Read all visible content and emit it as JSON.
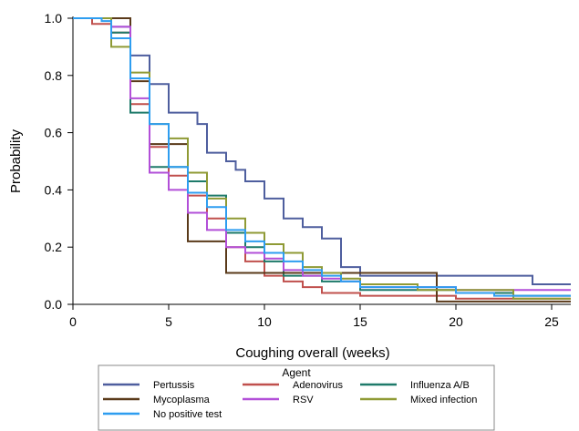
{
  "chart_data": {
    "type": "line",
    "step": true,
    "xlabel": "Coughing overall (weeks)",
    "ylabel": "Probability",
    "xlim": [
      0,
      26
    ],
    "ylim": [
      0,
      1.0
    ],
    "x_ticks": [
      0,
      5,
      10,
      15,
      20,
      25
    ],
    "y_ticks": [
      0.0,
      0.2,
      0.4,
      0.6,
      0.8,
      1.0
    ],
    "x_tick_labels": [
      "0",
      "5",
      "10",
      "15",
      "20",
      "25"
    ],
    "y_tick_labels": [
      "0.0",
      "0.2",
      "0.4",
      "0.6",
      "0.8",
      "1.0"
    ],
    "grid": false,
    "legend": {
      "title": "Agent",
      "placement": "bottom"
    },
    "series": [
      {
        "name": "Pertussis",
        "color": "#4e5e9e",
        "points": [
          [
            0,
            1.0
          ],
          [
            2,
            0.97
          ],
          [
            3,
            0.87
          ],
          [
            4,
            0.77
          ],
          [
            5,
            0.67
          ],
          [
            6,
            0.67
          ],
          [
            6.5,
            0.63
          ],
          [
            7,
            0.53
          ],
          [
            8,
            0.5
          ],
          [
            8.5,
            0.47
          ],
          [
            9,
            0.43
          ],
          [
            10,
            0.37
          ],
          [
            11,
            0.3
          ],
          [
            12,
            0.27
          ],
          [
            13,
            0.23
          ],
          [
            14,
            0.13
          ],
          [
            15,
            0.1
          ],
          [
            19,
            0.1
          ],
          [
            24,
            0.07
          ],
          [
            26,
            0.07
          ]
        ]
      },
      {
        "name": "Adenovirus",
        "color": "#c0504d",
        "points": [
          [
            0,
            1.0
          ],
          [
            1,
            0.98
          ],
          [
            2,
            0.95
          ],
          [
            3,
            0.7
          ],
          [
            4,
            0.55
          ],
          [
            5,
            0.45
          ],
          [
            6,
            0.38
          ],
          [
            7,
            0.3
          ],
          [
            8,
            0.2
          ],
          [
            9,
            0.15
          ],
          [
            10,
            0.1
          ],
          [
            11,
            0.08
          ],
          [
            12,
            0.06
          ],
          [
            13,
            0.04
          ],
          [
            15,
            0.03
          ],
          [
            20,
            0.02
          ],
          [
            26,
            0.02
          ]
        ]
      },
      {
        "name": "Influenza A/B",
        "color": "#1e7a6a",
        "points": [
          [
            0,
            1.0
          ],
          [
            2,
            0.95
          ],
          [
            3,
            0.67
          ],
          [
            4,
            0.48
          ],
          [
            5,
            0.48
          ],
          [
            6,
            0.43
          ],
          [
            7,
            0.38
          ],
          [
            8,
            0.25
          ],
          [
            9,
            0.2
          ],
          [
            10,
            0.15
          ],
          [
            11,
            0.1
          ],
          [
            13,
            0.08
          ],
          [
            15,
            0.05
          ],
          [
            20,
            0.04
          ],
          [
            23,
            0.03
          ],
          [
            26,
            0.03
          ]
        ]
      },
      {
        "name": "Mycoplasma",
        "color": "#5a3a1a",
        "points": [
          [
            0,
            1.0
          ],
          [
            3,
            0.78
          ],
          [
            4,
            0.56
          ],
          [
            5,
            0.56
          ],
          [
            6,
            0.22
          ],
          [
            8,
            0.11
          ],
          [
            15,
            0.11
          ],
          [
            19,
            0.11
          ],
          [
            19,
            0.01
          ],
          [
            26,
            0.01
          ]
        ]
      },
      {
        "name": "RSV",
        "color": "#b24fd8",
        "points": [
          [
            0,
            1.0
          ],
          [
            2,
            0.97
          ],
          [
            3,
            0.72
          ],
          [
            4,
            0.46
          ],
          [
            5,
            0.4
          ],
          [
            6,
            0.32
          ],
          [
            7,
            0.26
          ],
          [
            8,
            0.2
          ],
          [
            9,
            0.18
          ],
          [
            10,
            0.16
          ],
          [
            11,
            0.12
          ],
          [
            12,
            0.1
          ],
          [
            13,
            0.09
          ],
          [
            14,
            0.08
          ],
          [
            15,
            0.06
          ],
          [
            20,
            0.05
          ],
          [
            26,
            0.05
          ]
        ]
      },
      {
        "name": "Mixed infection",
        "color": "#8f9a35",
        "points": [
          [
            0,
            1.0
          ],
          [
            2,
            0.9
          ],
          [
            3,
            0.81
          ],
          [
            4,
            0.63
          ],
          [
            5,
            0.58
          ],
          [
            6,
            0.46
          ],
          [
            7,
            0.37
          ],
          [
            8,
            0.3
          ],
          [
            9,
            0.25
          ],
          [
            10,
            0.21
          ],
          [
            11,
            0.18
          ],
          [
            12,
            0.13
          ],
          [
            13,
            0.11
          ],
          [
            14,
            0.09
          ],
          [
            15,
            0.07
          ],
          [
            18,
            0.05
          ],
          [
            21,
            0.05
          ],
          [
            23,
            0.02
          ],
          [
            26,
            0.02
          ]
        ]
      },
      {
        "name": "No positive test",
        "color": "#2e9df0",
        "points": [
          [
            0,
            1.0
          ],
          [
            1.5,
            0.99
          ],
          [
            2,
            0.93
          ],
          [
            3,
            0.79
          ],
          [
            4,
            0.63
          ],
          [
            5,
            0.48
          ],
          [
            6,
            0.39
          ],
          [
            7,
            0.34
          ],
          [
            8,
            0.26
          ],
          [
            9,
            0.22
          ],
          [
            10,
            0.18
          ],
          [
            11,
            0.15
          ],
          [
            12,
            0.12
          ],
          [
            13,
            0.1
          ],
          [
            14,
            0.08
          ],
          [
            15,
            0.06
          ],
          [
            20,
            0.04
          ],
          [
            22,
            0.03
          ],
          [
            24,
            0.03
          ],
          [
            26,
            0.03
          ]
        ]
      }
    ]
  }
}
